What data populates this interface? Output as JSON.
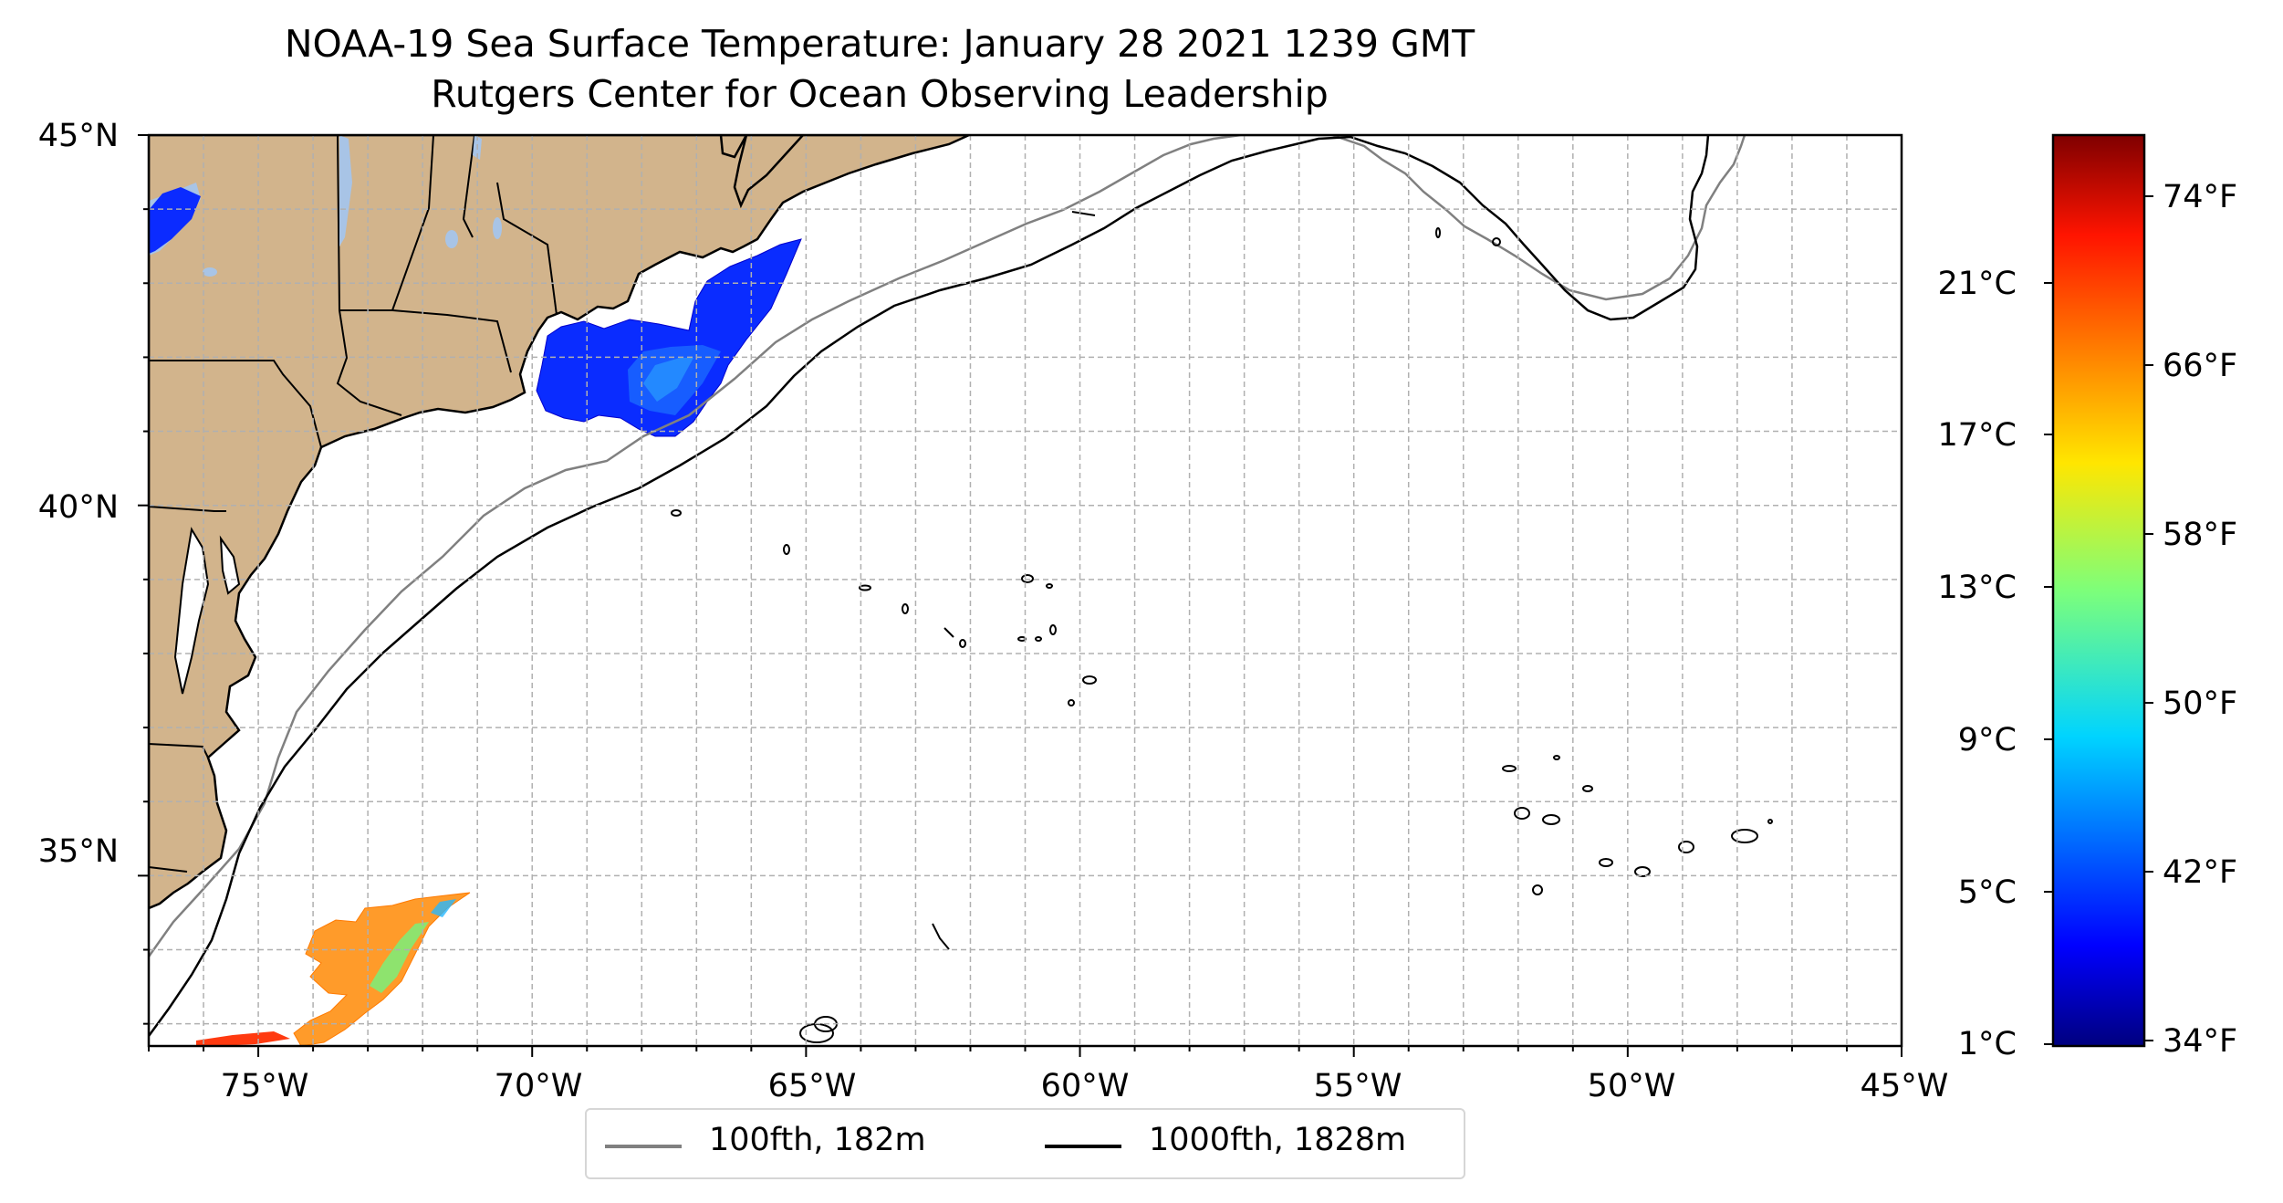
{
  "title": {
    "line1": "NOAA-19 Sea Surface Temperature: January 28 2021 1239 GMT",
    "line2": "Rutgers Center for Ocean Observing Leadership"
  },
  "map": {
    "lon_range": [
      -77,
      -45
    ],
    "lat_range": [
      32.7,
      45
    ],
    "lat_ticks": [
      "45°N",
      "40°N",
      "35°N"
    ],
    "lon_ticks": [
      "75°W",
      "70°W",
      "65°W",
      "60°W",
      "55°W",
      "50°W",
      "45°W"
    ],
    "gridlines": "dashed, every 1 degree",
    "land_color": "#d2b48c",
    "lake_color": "#a8c4e6"
  },
  "colorbar": {
    "colormap": "jet",
    "celsius_ticks": [
      "21°C",
      "17°C",
      "13°C",
      "9°C",
      "5°C",
      "1°C"
    ],
    "fahrenheit_ticks": [
      "74°F",
      "66°F",
      "58°F",
      "50°F",
      "42°F",
      "34°F"
    ]
  },
  "legend": {
    "items": [
      {
        "label": "100fth, 182m",
        "color": "#808080"
      },
      {
        "label": "1000fth, 1828m",
        "color": "#000000"
      }
    ],
    "placement": "bottom-center"
  }
}
